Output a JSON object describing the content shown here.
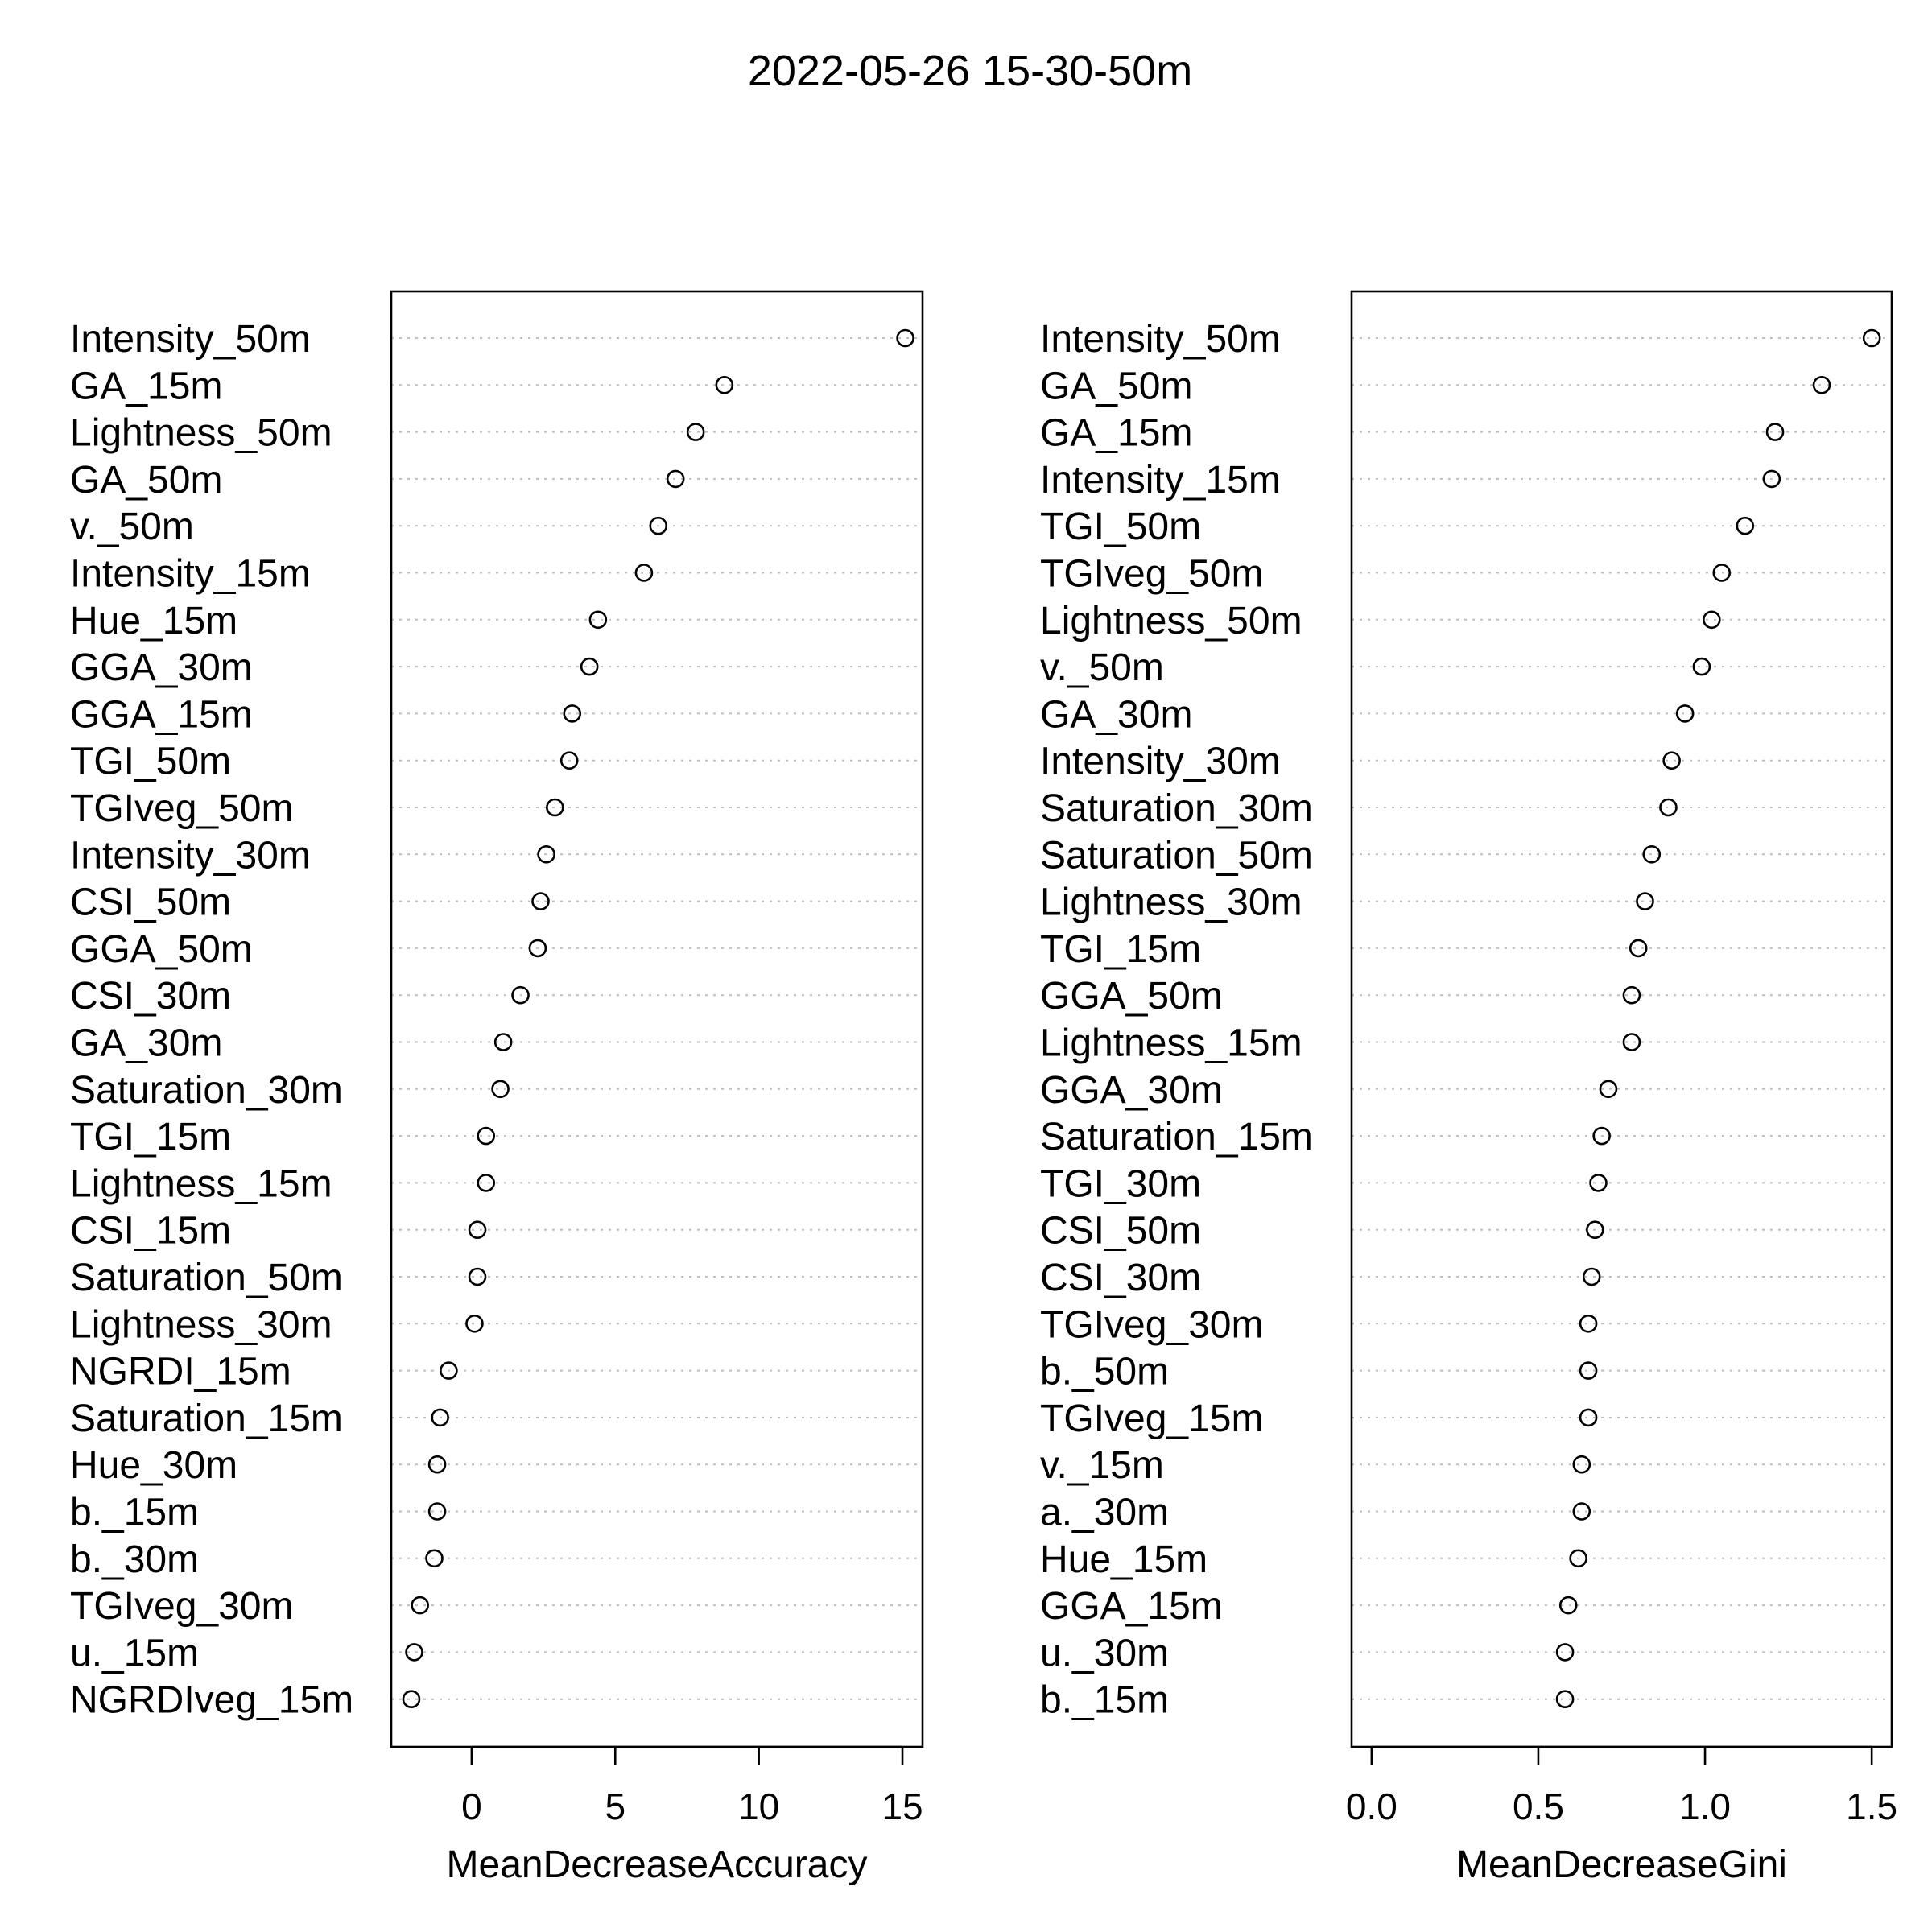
{
  "title": "2022-05-26 15-30-50m",
  "chart_data": [
    {
      "type": "dotchart",
      "xlabel": "MeanDecreaseAccuracy",
      "xlim": [
        -2.8,
        15.7
      ],
      "xticks": [
        0,
        5,
        10,
        15
      ],
      "xtick_labels": [
        "0",
        "5",
        "10",
        "15"
      ],
      "grid": "dotted horizontal guides",
      "points": [
        {
          "label": "Intensity_50m",
          "value": 15.1
        },
        {
          "label": "GA_15m",
          "value": 8.8
        },
        {
          "label": "Lightness_50m",
          "value": 7.8
        },
        {
          "label": "GA_50m",
          "value": 7.1
        },
        {
          "label": "v._50m",
          "value": 6.5
        },
        {
          "label": "Intensity_15m",
          "value": 6.0
        },
        {
          "label": "Hue_15m",
          "value": 4.4
        },
        {
          "label": "GGA_30m",
          "value": 4.1
        },
        {
          "label": "GGA_15m",
          "value": 3.5
        },
        {
          "label": "TGI_50m",
          "value": 3.4
        },
        {
          "label": "TGIveg_50m",
          "value": 2.9
        },
        {
          "label": "Intensity_30m",
          "value": 2.6
        },
        {
          "label": "CSI_50m",
          "value": 2.4
        },
        {
          "label": "GGA_50m",
          "value": 2.3
        },
        {
          "label": "CSI_30m",
          "value": 1.7
        },
        {
          "label": "GA_30m",
          "value": 1.1
        },
        {
          "label": "Saturation_30m",
          "value": 1.0
        },
        {
          "label": "TGI_15m",
          "value": 0.5
        },
        {
          "label": "Lightness_15m",
          "value": 0.5
        },
        {
          "label": "CSI_15m",
          "value": 0.2
        },
        {
          "label": "Saturation_50m",
          "value": 0.2
        },
        {
          "label": "Lightness_30m",
          "value": 0.1
        },
        {
          "label": "NGRDI_15m",
          "value": -0.8
        },
        {
          "label": "Saturation_15m",
          "value": -1.1
        },
        {
          "label": "Hue_30m",
          "value": -1.2
        },
        {
          "label": "b._15m",
          "value": -1.2
        },
        {
          "label": "b._30m",
          "value": -1.3
        },
        {
          "label": "TGIveg_30m",
          "value": -1.8
        },
        {
          "label": "u._15m",
          "value": -2.0
        },
        {
          "label": "NGRDIveg_15m",
          "value": -2.1
        }
      ]
    },
    {
      "type": "dotchart",
      "xlabel": "MeanDecreaseGini",
      "xlim": [
        -0.06,
        1.56
      ],
      "xticks": [
        0.0,
        0.5,
        1.0,
        1.5
      ],
      "xtick_labels": [
        "0.0",
        "0.5",
        "1.0",
        "1.5"
      ],
      "grid": "dotted horizontal guides",
      "points": [
        {
          "label": "Intensity_50m",
          "value": 1.5
        },
        {
          "label": "GA_50m",
          "value": 1.35
        },
        {
          "label": "GA_15m",
          "value": 1.21
        },
        {
          "label": "Intensity_15m",
          "value": 1.2
        },
        {
          "label": "TGI_50m",
          "value": 1.12
        },
        {
          "label": "TGIveg_50m",
          "value": 1.05
        },
        {
          "label": "Lightness_50m",
          "value": 1.02
        },
        {
          "label": "v._50m",
          "value": 0.99
        },
        {
          "label": "GA_30m",
          "value": 0.94
        },
        {
          "label": "Intensity_30m",
          "value": 0.9
        },
        {
          "label": "Saturation_30m",
          "value": 0.89
        },
        {
          "label": "Saturation_50m",
          "value": 0.84
        },
        {
          "label": "Lightness_30m",
          "value": 0.82
        },
        {
          "label": "TGI_15m",
          "value": 0.8
        },
        {
          "label": "GGA_50m",
          "value": 0.78
        },
        {
          "label": "Lightness_15m",
          "value": 0.78
        },
        {
          "label": "GGA_30m",
          "value": 0.71
        },
        {
          "label": "Saturation_15m",
          "value": 0.69
        },
        {
          "label": "TGI_30m",
          "value": 0.68
        },
        {
          "label": "CSI_50m",
          "value": 0.67
        },
        {
          "label": "CSI_30m",
          "value": 0.66
        },
        {
          "label": "TGIveg_30m",
          "value": 0.65
        },
        {
          "label": "b._50m",
          "value": 0.65
        },
        {
          "label": "TGIveg_15m",
          "value": 0.65
        },
        {
          "label": "v._15m",
          "value": 0.63
        },
        {
          "label": "a._30m",
          "value": 0.63
        },
        {
          "label": "Hue_15m",
          "value": 0.62
        },
        {
          "label": "GGA_15m",
          "value": 0.59
        },
        {
          "label": "u._30m",
          "value": 0.58
        },
        {
          "label": "b._15m",
          "value": 0.58
        }
      ]
    }
  ]
}
